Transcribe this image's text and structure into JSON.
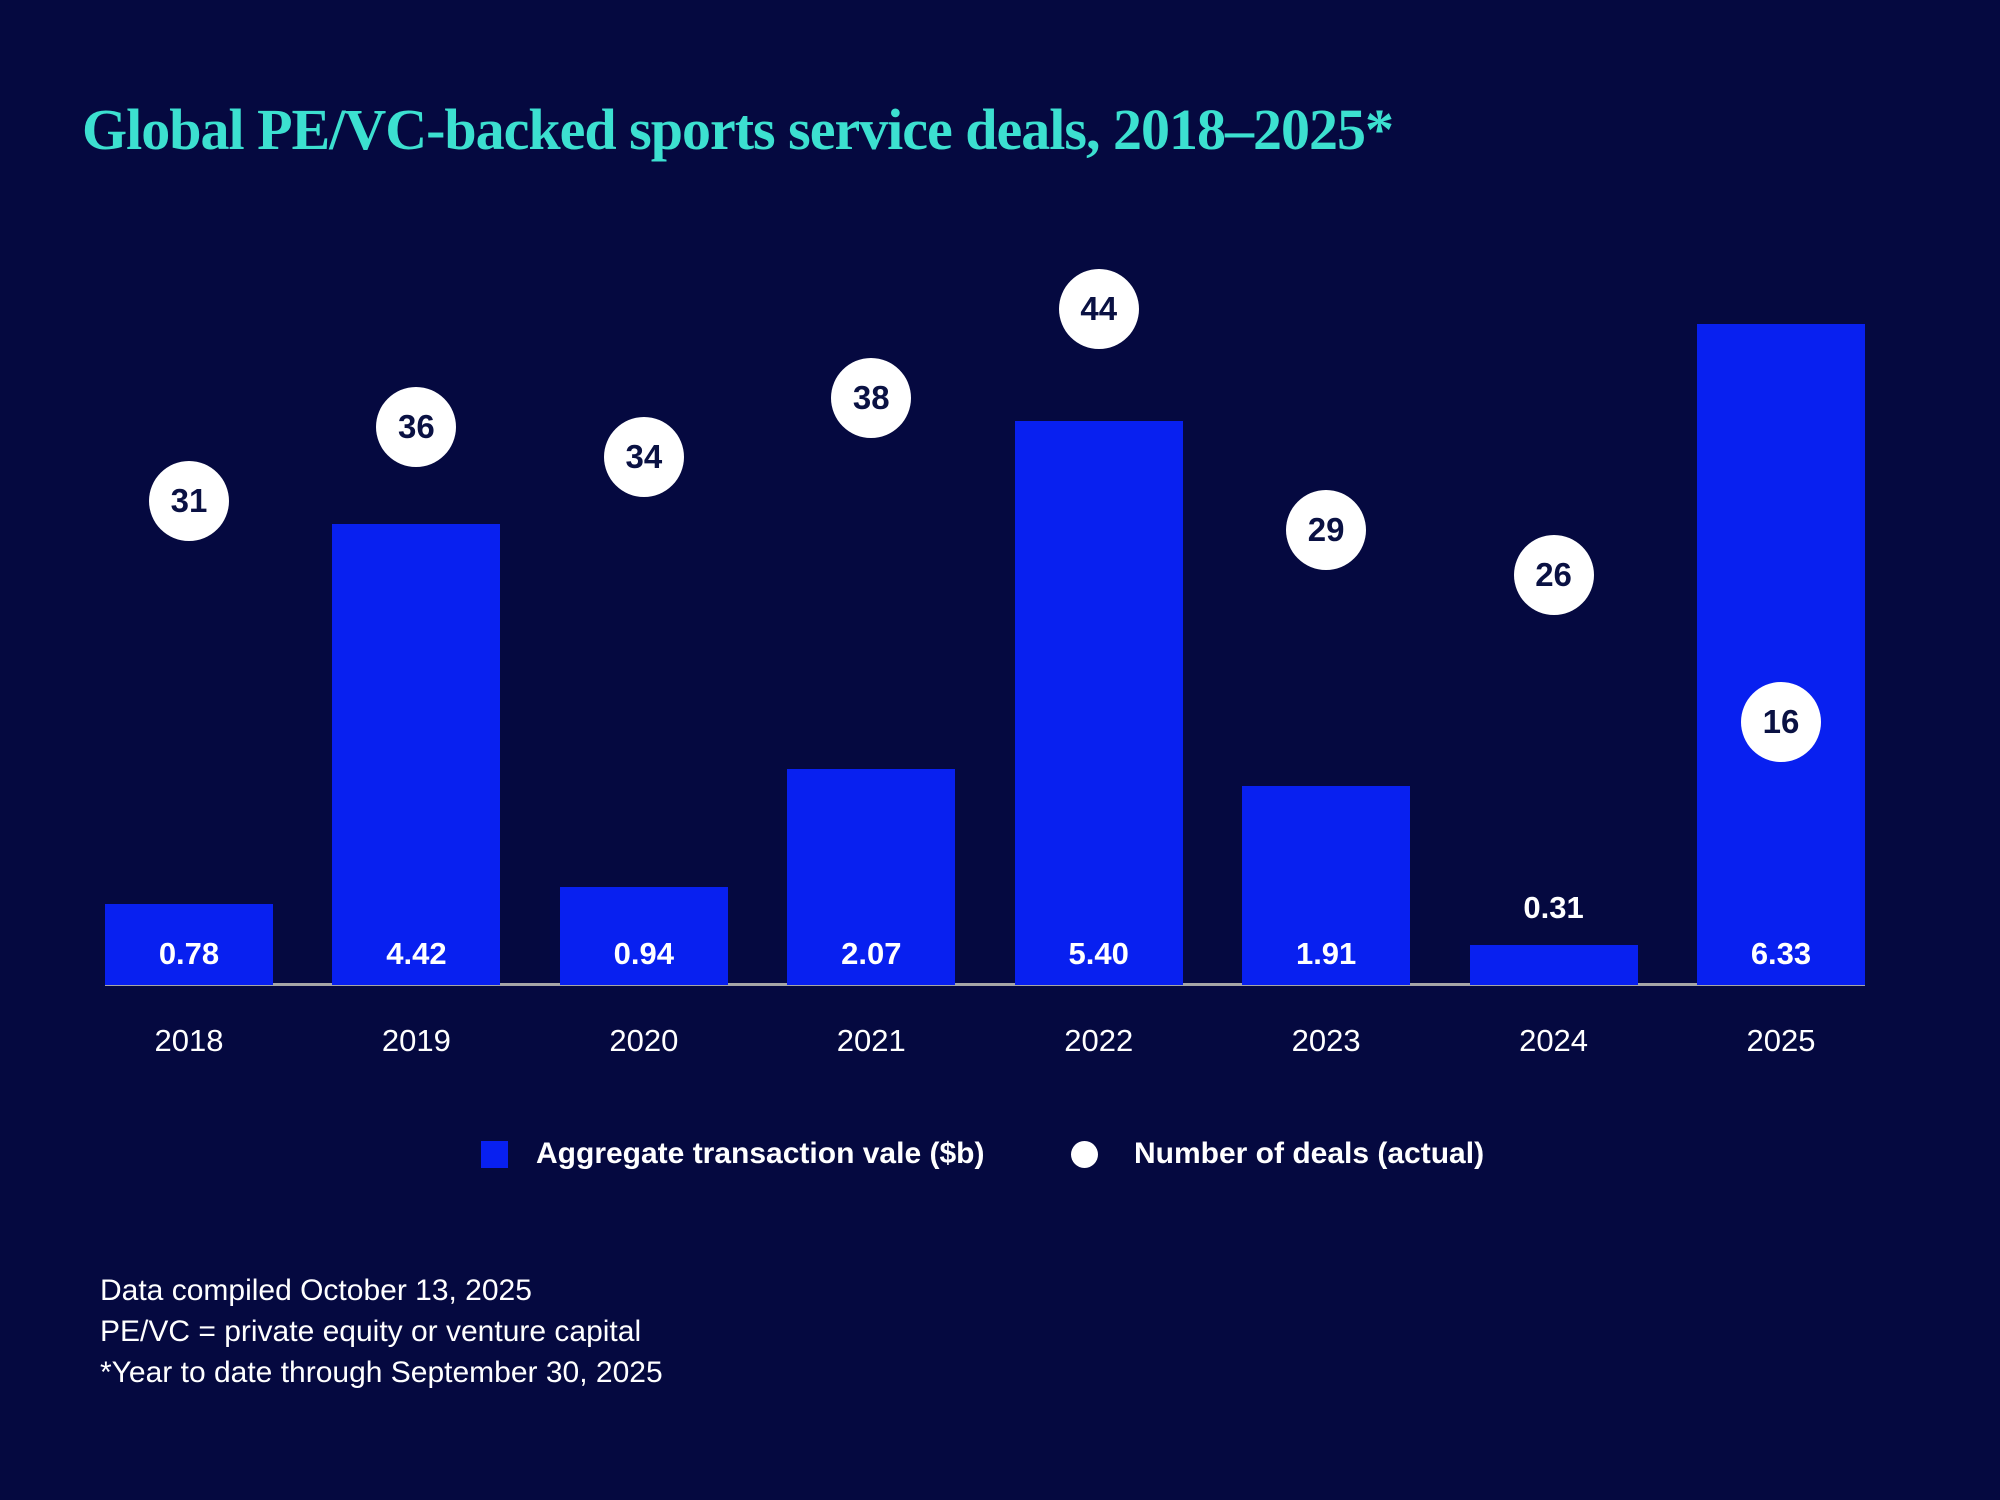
{
  "title": "Global PE/VC-backed sports service deals, 2018–2025*",
  "chart_data": {
    "type": "bar",
    "title": "Global PE/VC-backed sports service deals, 2018–2025*",
    "categories": [
      "2018",
      "2019",
      "2020",
      "2021",
      "2022",
      "2023",
      "2024",
      "2025"
    ],
    "series": [
      {
        "name": "Aggregate transaction vale ($b)",
        "type": "bar",
        "values": [
          0.78,
          4.42,
          0.94,
          2.07,
          5.4,
          1.91,
          0.31,
          6.33
        ],
        "labels": [
          "0.78",
          "4.42",
          "0.94",
          "2.07",
          "5.40",
          "1.91",
          "0.31",
          "6.33"
        ]
      },
      {
        "name": "Number of deals (actual)",
        "type": "point",
        "values": [
          31,
          36,
          34,
          38,
          44,
          29,
          26,
          16
        ]
      }
    ],
    "xlabel": "",
    "ylabel": "",
    "value_axis_visible": false,
    "grid": false,
    "legend_position": "bottom"
  },
  "legend": {
    "bar_label": "Aggregate transaction vale ($b)",
    "deals_label": "Number of deals (actual)"
  },
  "footnotes": [
    "Data compiled October 13, 2025",
    "PE/VC = private equity or venture capital",
    "*Year to date through September 30, 2025"
  ],
  "colors": {
    "background": "#050940",
    "bar_blue": "#0820f0",
    "title_teal": "#3ce0d0",
    "deal_circle_fill": "#ffffff",
    "deal_circle_text": "#0a1143",
    "axis_line": "#a6a6a6",
    "text_white": "#ffffff"
  }
}
